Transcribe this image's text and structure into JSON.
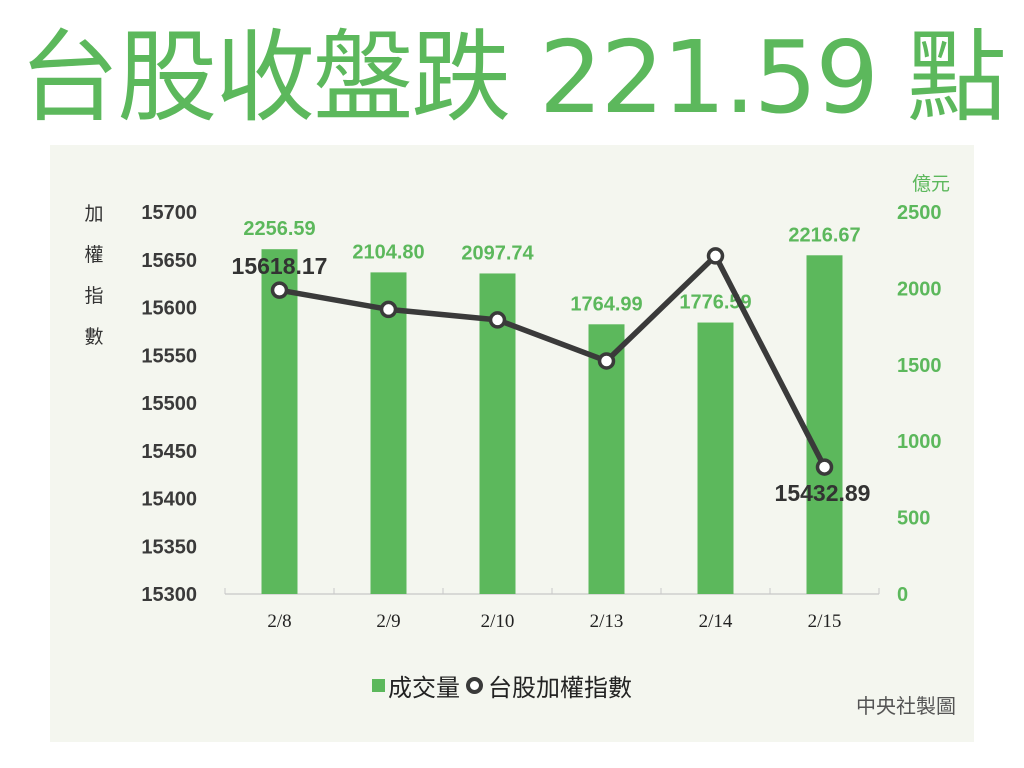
{
  "header": {
    "title": "台股收盤跌 221.59 點"
  },
  "chart_data": {
    "type": "bar+line",
    "title": "台股收盤跌 221.59 點",
    "categories": [
      "2/8",
      "2/9",
      "2/10",
      "2/13",
      "2/14",
      "2/15"
    ],
    "series": [
      {
        "name": "成交量",
        "type": "bar",
        "axis": "right",
        "unit": "億元",
        "color": "#5cb85c",
        "values": [
          2256.59,
          2104.8,
          2097.74,
          1764.99,
          1776.59,
          2216.67
        ],
        "labels": [
          "2256.59",
          "2104.80",
          "2097.74",
          "1764.99",
          "1776.59",
          "2216.67"
        ]
      },
      {
        "name": "台股加權指數",
        "type": "line",
        "axis": "left",
        "color": "#3a3a3a",
        "values": [
          15618.17,
          15598,
          15587,
          15544,
          15654,
          15432.89
        ],
        "labels": [
          "15618.17",
          "",
          "",
          "",
          "",
          "15432.89"
        ]
      }
    ],
    "left_axis": {
      "label": "加權指數",
      "label_chars": [
        "加",
        "權",
        "指",
        "數"
      ],
      "ylim": [
        15300,
        15700
      ],
      "ticks": [
        "15700",
        "15650",
        "15600",
        "15550",
        "15500",
        "15450",
        "15400",
        "15350",
        "15300"
      ]
    },
    "right_axis": {
      "label": "億元",
      "ylim": [
        0,
        2500
      ],
      "ticks": [
        "2500",
        "2000",
        "1500",
        "1000",
        "500",
        "0"
      ]
    },
    "xlabel": "",
    "grid": false,
    "legend_position": "bottom"
  },
  "legend": {
    "items": [
      {
        "label": "成交量",
        "swatch": "green-square"
      },
      {
        "label": "台股加權指數",
        "swatch": "dark-ring"
      }
    ]
  },
  "footer": {
    "credit": "中央社製圖"
  },
  "colors": {
    "accent": "#5cb85c",
    "line": "#3a3a3a",
    "panel_bg": "#f4f6ef"
  }
}
